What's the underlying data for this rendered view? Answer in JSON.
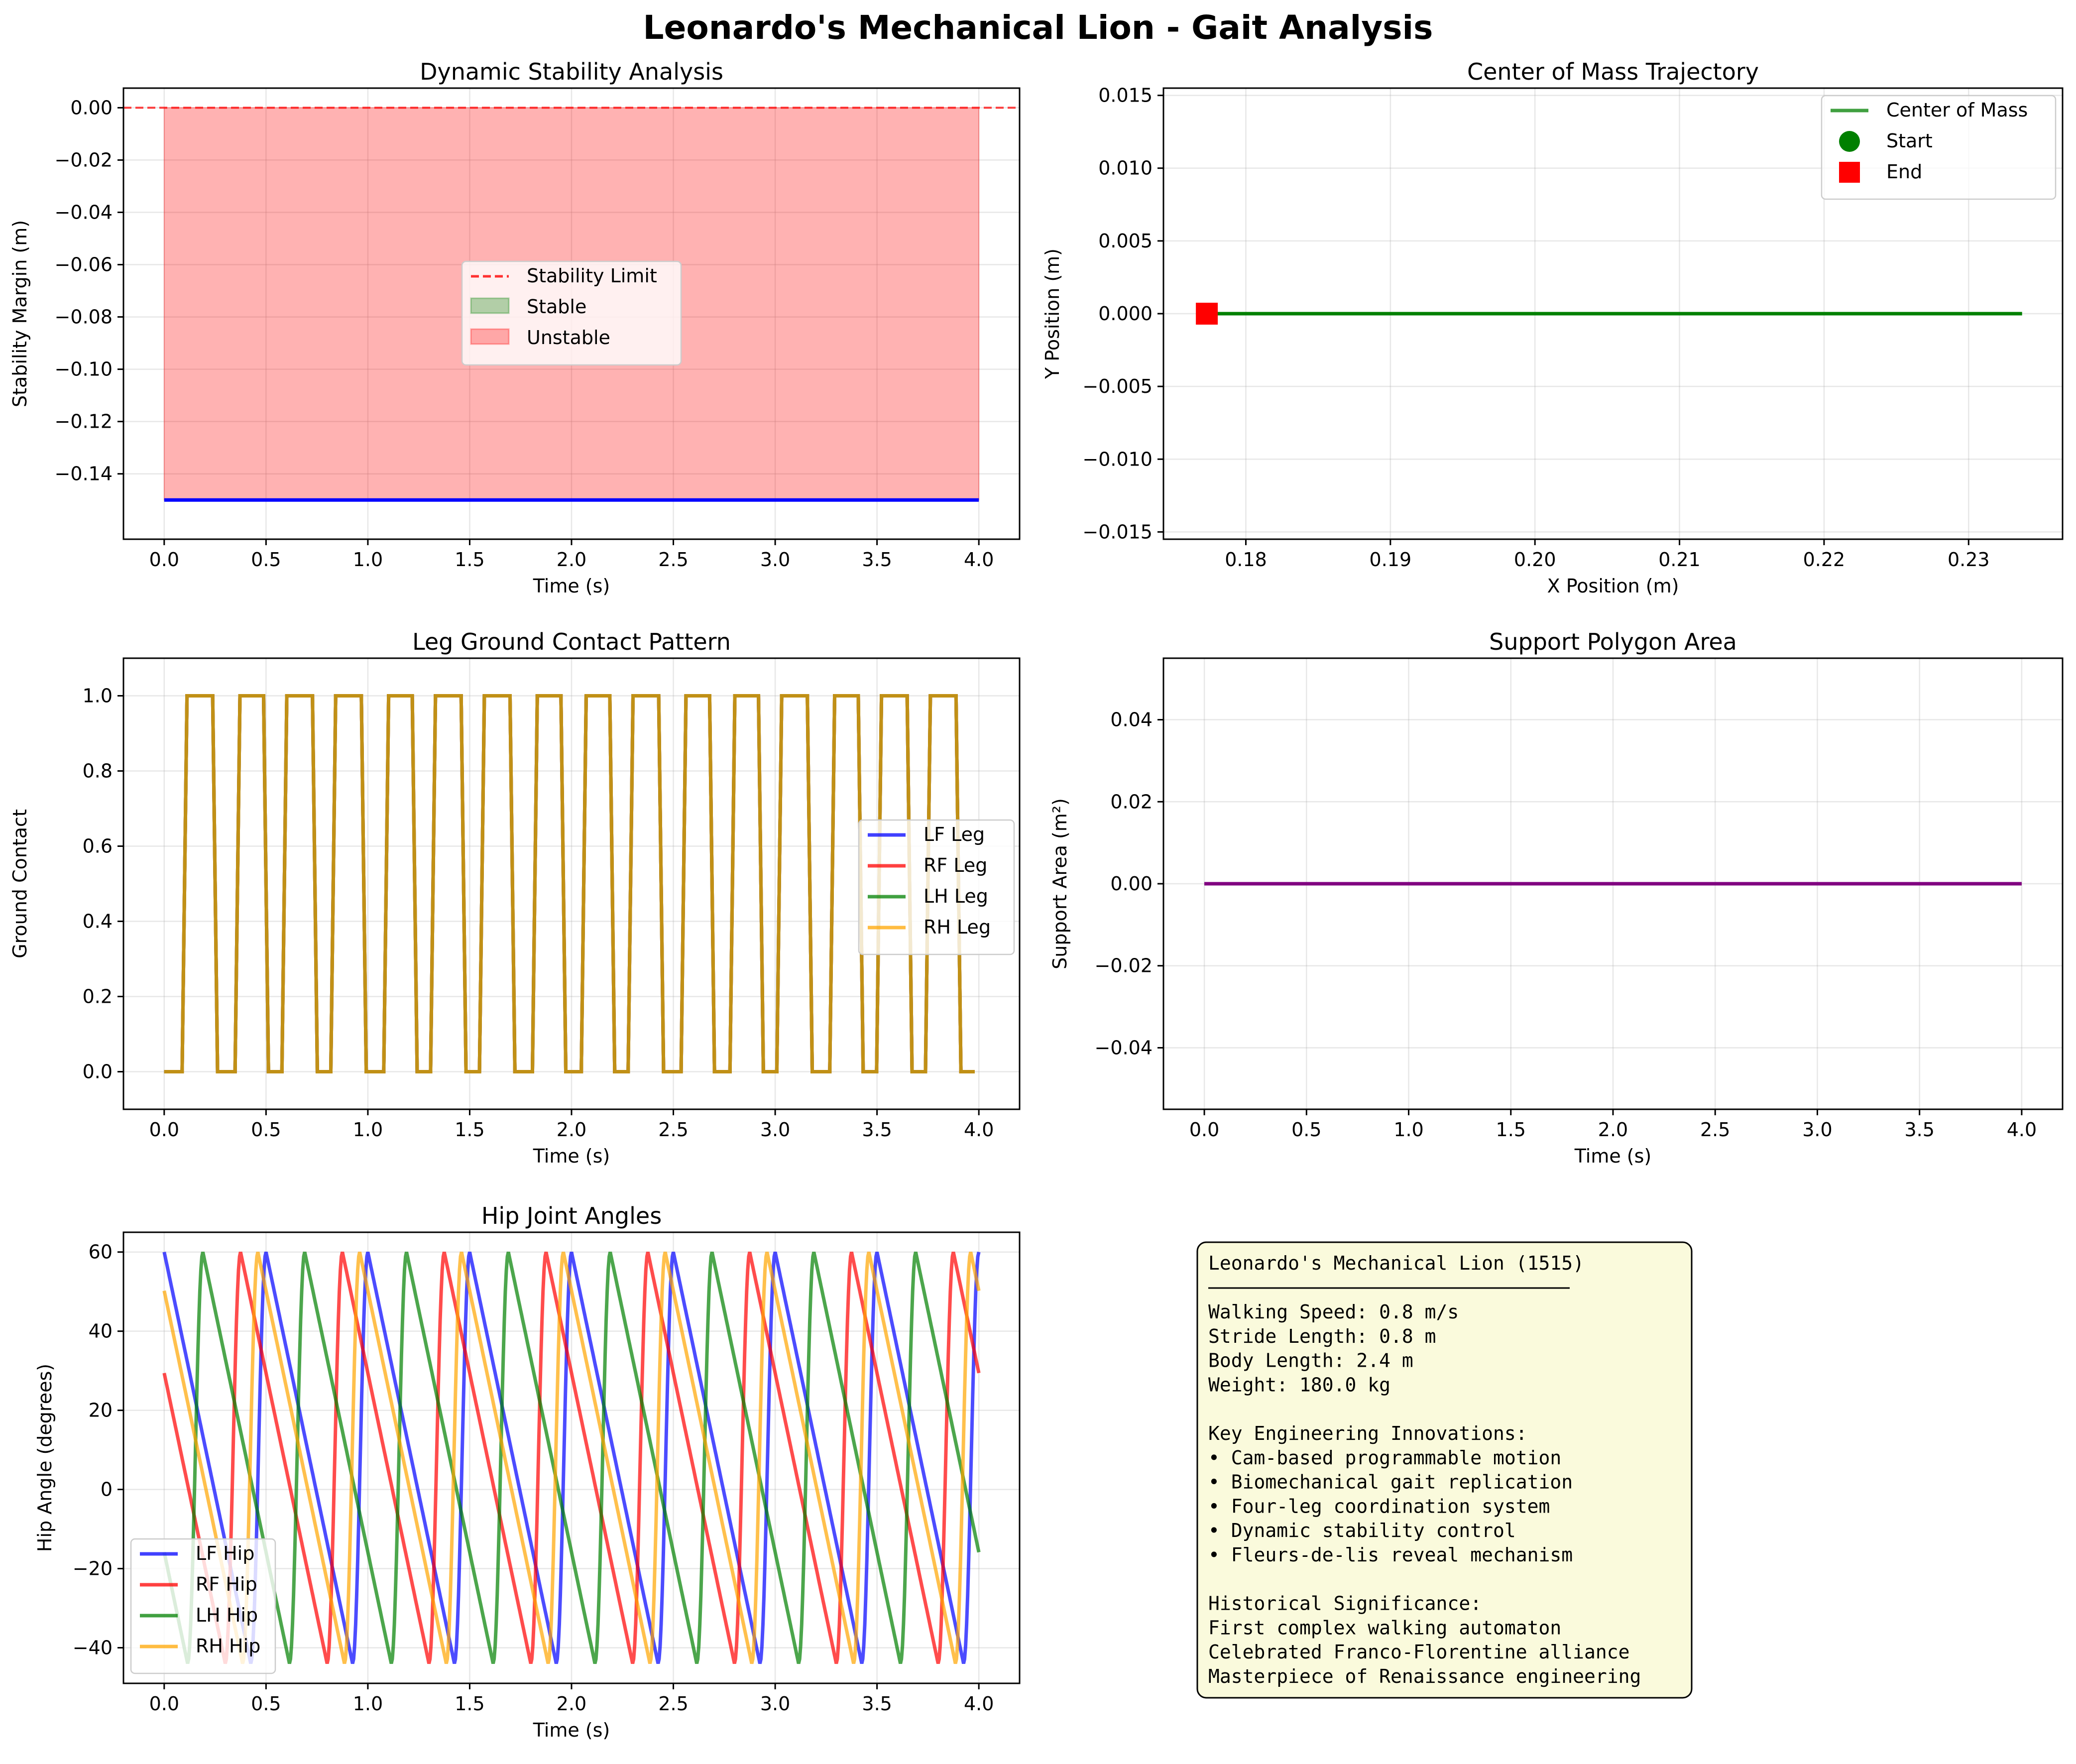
{
  "figure": {
    "title": "Leonardo's Mechanical Lion - Gait Analysis"
  },
  "chart_data": [
    {
      "id": "stability",
      "type": "area",
      "title": "Dynamic Stability Analysis",
      "xlabel": "Time (s)",
      "ylabel": "Stability Margin (m)",
      "xlim": [
        -0.2,
        4.2
      ],
      "ylim": [
        -0.165,
        0.0075
      ],
      "xticks": [
        0.0,
        0.5,
        1.0,
        1.5,
        2.0,
        2.5,
        3.0,
        3.5,
        4.0
      ],
      "yticks": [
        0.0,
        -0.02,
        -0.04,
        -0.06,
        -0.08,
        -0.1,
        -0.12,
        -0.14
      ],
      "ytick_labels": [
        "0.00",
        "−0.02",
        "−0.04",
        "−0.06",
        "−0.08",
        "−0.10",
        "−0.12",
        "−0.14"
      ],
      "grid": true,
      "legend_position": "center",
      "series": [
        {
          "name": "",
          "kind": "line",
          "color": "#0000ff",
          "x": [
            0.0,
            4.0
          ],
          "y": [
            -0.15,
            -0.15
          ]
        }
      ],
      "fill_between": [
        {
          "name": "Unstable",
          "color": "#ff0000",
          "alpha": 0.3,
          "x": [
            0.0,
            4.0
          ],
          "y_low": -0.15,
          "y_high": 0.0
        },
        {
          "name": "Stable",
          "color": "#008000",
          "alpha": 0.3,
          "x": [],
          "y_low": 0.0,
          "y_high": 0.0
        }
      ],
      "hlines": [
        {
          "name": "Stability Limit",
          "y": 0.0,
          "color": "#ff0000",
          "style": "dashed"
        }
      ],
      "legend": [
        {
          "label": "Stability Limit",
          "kind": "dash",
          "color": "#ff0000"
        },
        {
          "label": "Stable",
          "kind": "patch",
          "color": "#008000"
        },
        {
          "label": "Unstable",
          "kind": "patch",
          "color": "#ff0000"
        }
      ]
    },
    {
      "id": "com",
      "type": "line",
      "title": "Center of Mass Trajectory",
      "xlabel": "X Position (m)",
      "ylabel": "Y Position (m)",
      "xlim": [
        0.1743,
        0.2365
      ],
      "ylim": [
        -0.0155,
        0.0155
      ],
      "xticks": [
        0.18,
        0.19,
        0.2,
        0.21,
        0.22,
        0.23
      ],
      "xtick_labels": [
        "0.18",
        "0.19",
        "0.20",
        "0.21",
        "0.22",
        "0.23"
      ],
      "yticks": [
        0.015,
        0.01,
        0.005,
        0.0,
        -0.005,
        -0.01,
        -0.015
      ],
      "ytick_labels": [
        "0.015",
        "0.010",
        "0.005",
        "0.000",
        "−0.005",
        "−0.010",
        "−0.015"
      ],
      "grid": true,
      "legend_position": "top-right",
      "series": [
        {
          "name": "Center of Mass",
          "kind": "line",
          "color": "#008000",
          "x": [
            0.1773,
            0.2337
          ],
          "y": [
            0.0,
            0.0
          ]
        },
        {
          "name": "Start",
          "kind": "circle",
          "color": "#008000",
          "x": [
            0.1773
          ],
          "y": [
            0.0
          ]
        },
        {
          "name": "End",
          "kind": "square",
          "color": "#ff0000",
          "x": [
            0.1773
          ],
          "y": [
            0.0
          ]
        }
      ],
      "legend": [
        {
          "label": "Center of Mass",
          "kind": "line",
          "color": "#008000"
        },
        {
          "label": "Start",
          "kind": "circle",
          "color": "#008000"
        },
        {
          "label": "End",
          "kind": "square",
          "color": "#ff0000"
        }
      ]
    },
    {
      "id": "contact",
      "type": "line",
      "title": "Leg Ground Contact Pattern",
      "xlabel": "Time (s)",
      "ylabel": "Ground Contact",
      "xlim": [
        -0.2,
        4.2
      ],
      "ylim": [
        -0.1,
        1.1
      ],
      "xticks": [
        0.0,
        0.5,
        1.0,
        1.5,
        2.0,
        2.5,
        3.0,
        3.5,
        4.0
      ],
      "yticks": [
        0.0,
        0.2,
        0.4,
        0.6,
        0.8,
        1.0
      ],
      "ytick_labels": [
        "0.0",
        "0.2",
        "0.4",
        "0.6",
        "0.8",
        "1.0"
      ],
      "grid": true,
      "legend_position": "center-right",
      "contact_on_intervals": [
        [
          0.1,
          0.25
        ],
        [
          0.36,
          0.5
        ],
        [
          0.59,
          0.74
        ],
        [
          0.83,
          0.98
        ],
        [
          1.09,
          1.23
        ],
        [
          1.32,
          1.47
        ],
        [
          1.56,
          1.71
        ],
        [
          1.82,
          1.96
        ],
        [
          2.06,
          2.2
        ],
        [
          2.29,
          2.44
        ],
        [
          2.55,
          2.69
        ],
        [
          2.79,
          2.93
        ],
        [
          3.02,
          3.17
        ],
        [
          3.28,
          3.42
        ],
        [
          3.51,
          3.66
        ],
        [
          3.75,
          3.9
        ]
      ],
      "overlay_color": "#c0901a",
      "series": [
        {
          "name": "LF Leg",
          "color": "#0000ff"
        },
        {
          "name": "RF Leg",
          "color": "#ff0000"
        },
        {
          "name": "LH Leg",
          "color": "#008000"
        },
        {
          "name": "RH Leg",
          "color": "#ffa500"
        }
      ],
      "legend": [
        {
          "label": "LF Leg",
          "kind": "line",
          "color": "#0000ff"
        },
        {
          "label": "RF Leg",
          "kind": "line",
          "color": "#ff0000"
        },
        {
          "label": "LH Leg",
          "kind": "line",
          "color": "#008000"
        },
        {
          "label": "RH Leg",
          "kind": "line",
          "color": "#ffa500"
        }
      ]
    },
    {
      "id": "support",
      "type": "line",
      "title": "Support Polygon Area",
      "xlabel": "Time (s)",
      "ylabel": "Support Area (m²)",
      "xlim": [
        -0.2,
        4.2
      ],
      "ylim": [
        -0.055,
        0.055
      ],
      "xticks": [
        0.0,
        0.5,
        1.0,
        1.5,
        2.0,
        2.5,
        3.0,
        3.5,
        4.0
      ],
      "yticks": [
        0.04,
        0.02,
        0.0,
        -0.02,
        -0.04
      ],
      "ytick_labels": [
        "0.04",
        "0.02",
        "0.00",
        "−0.02",
        "−0.04"
      ],
      "grid": true,
      "series": [
        {
          "name": "",
          "kind": "line",
          "color": "#800080",
          "x": [
            0.0,
            4.0
          ],
          "y": [
            0.0,
            0.0
          ]
        }
      ]
    },
    {
      "id": "hip",
      "type": "line",
      "title": "Hip Joint Angles",
      "xlabel": "Time (s)",
      "ylabel": "Hip Angle (degrees)",
      "xlim": [
        -0.2,
        4.2
      ],
      "ylim": [
        -49,
        65
      ],
      "xticks": [
        0.0,
        0.5,
        1.0,
        1.5,
        2.0,
        2.5,
        3.0,
        3.5,
        4.0
      ],
      "yticks": [
        60,
        40,
        20,
        0,
        -20,
        -40
      ],
      "ytick_labels": [
        "60",
        "40",
        "20",
        "0",
        "−20",
        "−40"
      ],
      "grid": true,
      "legend_position": "bottom-left",
      "period": 0.5,
      "waveform": {
        "min_angle": -44,
        "max_angle": 60,
        "fall_fraction": 0.85,
        "rise_fraction": 0.15
      },
      "series": [
        {
          "name": "LF Hip",
          "color": "#0000ff",
          "phase": 0.0
        },
        {
          "name": "RF Hip",
          "color": "#ff0000",
          "phase": 0.25
        },
        {
          "name": "LH Hip",
          "color": "#008000",
          "phase": 0.62
        },
        {
          "name": "RH Hip",
          "color": "#ffa500",
          "phase": 0.08
        }
      ],
      "legend": [
        {
          "label": "LF Hip",
          "kind": "line",
          "color": "#0000ff"
        },
        {
          "label": "RF Hip",
          "kind": "line",
          "color": "#ff0000"
        },
        {
          "label": "LH Hip",
          "kind": "line",
          "color": "#008000"
        },
        {
          "label": "RH Hip",
          "kind": "line",
          "color": "#ffa500"
        }
      ]
    }
  ],
  "info_box": {
    "title": "Leonardo's Mechanical Lion (1515)",
    "lines": [
      "Walking Speed: 0.8 m/s",
      "Stride Length: 0.8 m",
      "Body Length: 2.4 m",
      "Weight: 180.0 kg",
      "",
      "Key Engineering Innovations:",
      "• Cam-based programmable motion",
      "• Biomechanical gait replication",
      "• Four-leg coordination system",
      "• Dynamic stability control",
      "• Fleurs-de-lis reveal mechanism",
      "",
      "Historical Significance:",
      "First complex walking automaton",
      "Celebrated Franco-Florentine alliance",
      "Masterpiece of Renaissance engineering"
    ],
    "background": "#fafadc"
  }
}
